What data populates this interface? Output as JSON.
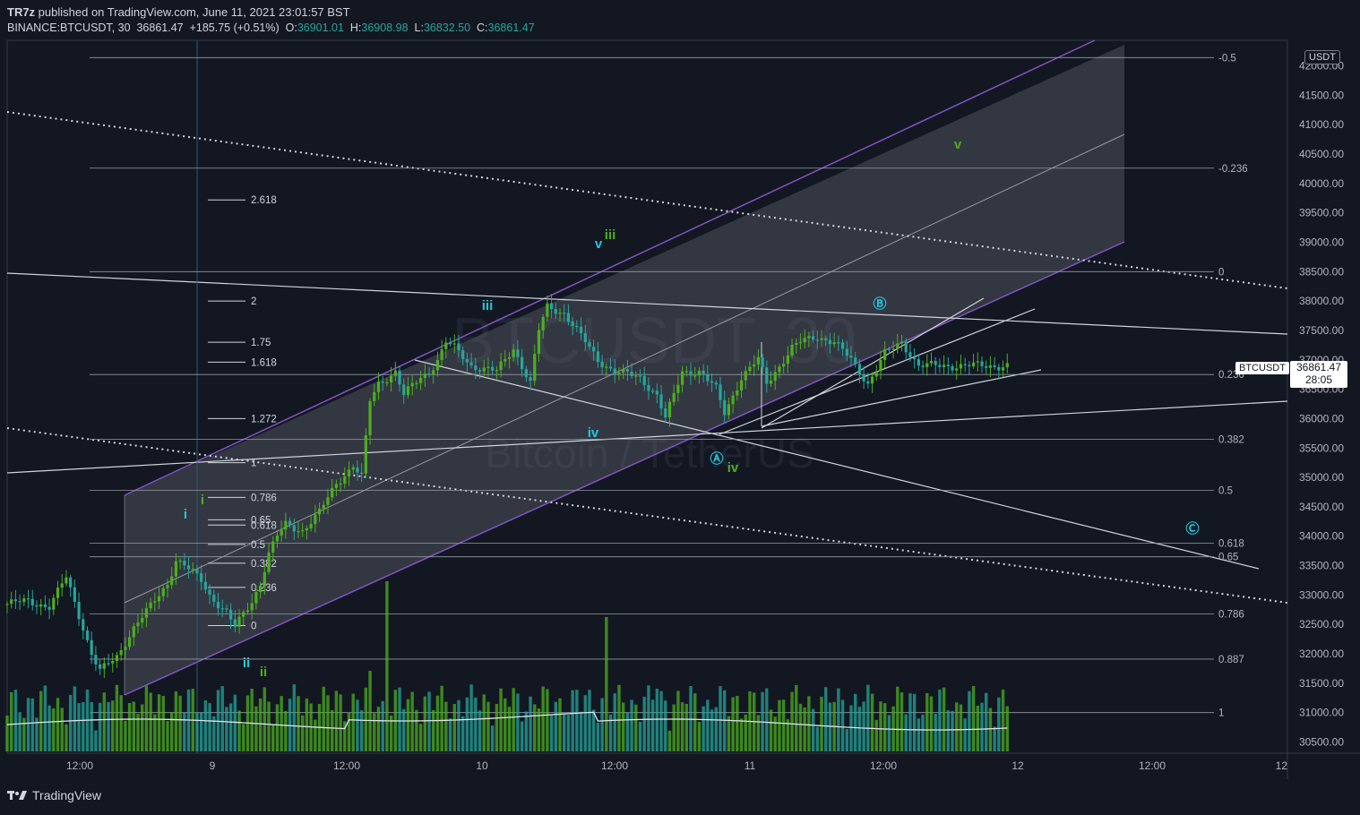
{
  "header": {
    "publisher": "TR7z",
    "published_text": " published on TradingView.com, June 11, 2021 23:01:57 BST",
    "symbol": "BINANCE:BTCUSDT, 30",
    "last": "36861.47",
    "change": "+185.75 (+0.51%)",
    "o_label": "O:",
    "o": "36901.01",
    "h_label": "H:",
    "h": "36908.98",
    "l_label": "L:",
    "l": "36832.50",
    "c_label": "C:",
    "c": "36861.47"
  },
  "watermark": {
    "main": "BTCUSDT, 30",
    "sub": "Bitcoin / TetherUS"
  },
  "price_axis": {
    "currency": "USDT"
  },
  "price_marker": {
    "ticker": "BTCUSDT",
    "price": "36861.47",
    "countdown": "28:05"
  },
  "footer": {
    "brand": "TradingView"
  },
  "colors": {
    "up": "#4caf1f",
    "down": "#26a69a",
    "channel": "#7e57c2",
    "cyan": "#26c6da",
    "green": "#4caf1f",
    "bg": "#131722"
  },
  "chart_data": {
    "type": "candlestick",
    "ylim": [
      30300,
      42500
    ],
    "y_ticks": [
      30500,
      31000,
      31500,
      32000,
      32500,
      33000,
      33500,
      34000,
      34500,
      35000,
      35500,
      36000,
      36500,
      37000,
      37500,
      38000,
      38500,
      39000,
      39500,
      40000,
      40500,
      41000,
      41500,
      42000
    ],
    "y_tick_labels": [
      "30500.00",
      "31000.00",
      "31500.00",
      "32000.00",
      "32500.00",
      "33000.00",
      "33500.00",
      "34000.00",
      "34500.00",
      "35000.00",
      "35500.00",
      "36000.00",
      "36500.00",
      "37000.00",
      "37500.00",
      "38000.00",
      "38500.00",
      "39000.00",
      "39500.00",
      "40000.00",
      "40500.00",
      "41000.00",
      "41500.00",
      "42000.00"
    ],
    "x_ticks": [
      "12:00",
      "9",
      "12:00",
      "10",
      "12:00",
      "11",
      "12:00",
      "12",
      "12:00",
      "12"
    ],
    "close_path": [
      [
        0,
        32850
      ],
      [
        5,
        32900
      ],
      [
        10,
        32800
      ],
      [
        14,
        33300
      ],
      [
        18,
        32450
      ],
      [
        20,
        32000
      ],
      [
        22,
        31700
      ],
      [
        26,
        31950
      ],
      [
        30,
        32450
      ],
      [
        34,
        32800
      ],
      [
        38,
        33200
      ],
      [
        40,
        33600
      ],
      [
        42,
        33500
      ],
      [
        46,
        33250
      ],
      [
        48,
        33000
      ],
      [
        52,
        32700
      ],
      [
        54,
        32450
      ],
      [
        58,
        32900
      ],
      [
        60,
        33200
      ],
      [
        62,
        33700
      ],
      [
        64,
        34000
      ],
      [
        66,
        34200
      ],
      [
        70,
        34100
      ],
      [
        74,
        34400
      ],
      [
        78,
        34900
      ],
      [
        82,
        35200
      ],
      [
        84,
        35000
      ],
      [
        86,
        36300
      ],
      [
        88,
        36600
      ],
      [
        92,
        36800
      ],
      [
        94,
        36400
      ],
      [
        98,
        36700
      ],
      [
        100,
        36800
      ],
      [
        102,
        37000
      ],
      [
        104,
        37300
      ],
      [
        106,
        37200
      ],
      [
        110,
        36900
      ],
      [
        116,
        36800
      ],
      [
        120,
        37200
      ],
      [
        124,
        36600
      ],
      [
        126,
        37500
      ],
      [
        128,
        37900
      ],
      [
        132,
        37800
      ],
      [
        136,
        37400
      ],
      [
        140,
        37000
      ],
      [
        144,
        36800
      ],
      [
        150,
        36700
      ],
      [
        154,
        36400
      ],
      [
        156,
        36000
      ],
      [
        160,
        36800
      ],
      [
        164,
        36800
      ],
      [
        168,
        36500
      ],
      [
        170,
        36100
      ],
      [
        174,
        36700
      ],
      [
        178,
        37000
      ],
      [
        180,
        36600
      ],
      [
        182,
        36800
      ],
      [
        186,
        37200
      ],
      [
        188,
        37300
      ],
      [
        192,
        37400
      ],
      [
        196,
        37300
      ],
      [
        200,
        37000
      ],
      [
        204,
        36600
      ],
      [
        208,
        37100
      ],
      [
        212,
        37300
      ],
      [
        216,
        36900
      ]
    ],
    "fib_retracement_right": [
      {
        "level": "-0.5",
        "price": 42140
      },
      {
        "level": "-0.236",
        "price": 40260
      },
      {
        "level": "0",
        "price": 38500
      },
      {
        "level": "0.236",
        "price": 36750
      },
      {
        "level": "0.382",
        "price": 35650
      },
      {
        "level": "0.5",
        "price": 34780
      },
      {
        "level": "0.618",
        "price": 33880
      },
      {
        "level": "0.65",
        "price": 33650
      },
      {
        "level": "0.786",
        "price": 32680
      },
      {
        "level": "0.887",
        "price": 31910
      },
      {
        "level": "1",
        "price": 31000
      }
    ],
    "fib_extension_left": [
      {
        "level": "2.618",
        "price": 39720
      },
      {
        "level": "2",
        "price": 38000
      },
      {
        "level": "1.75",
        "price": 37300
      },
      {
        "level": "1.618",
        "price": 36960
      },
      {
        "level": "1.272",
        "price": 36000
      },
      {
        "level": "1",
        "price": 35250
      },
      {
        "level": "0.786",
        "price": 34660
      },
      {
        "level": "0.65",
        "price": 34280
      },
      {
        "level": "0.618",
        "price": 34190
      },
      {
        "level": "0.5",
        "price": 33860
      },
      {
        "level": "0.382",
        "price": 33540
      },
      {
        "level": "0.236",
        "price": 33130
      },
      {
        "level": "0",
        "price": 32480
      }
    ],
    "wave_labels": [
      {
        "text": "i",
        "color": "cyan"
      },
      {
        "text": "i",
        "color": "green"
      },
      {
        "text": "ii",
        "color": "cyan"
      },
      {
        "text": "ii",
        "color": "green"
      },
      {
        "text": "iii",
        "color": "cyan"
      },
      {
        "text": "v",
        "color": "cyan"
      },
      {
        "text": "iii",
        "color": "green"
      },
      {
        "text": "iv",
        "color": "cyan"
      },
      {
        "text": "Ⓐ",
        "color": "cyan"
      },
      {
        "text": "iv",
        "color": "green"
      },
      {
        "text": "Ⓑ",
        "color": "cyan"
      },
      {
        "text": "v",
        "color": "green"
      },
      {
        "text": "Ⓒ",
        "color": "cyan"
      }
    ]
  }
}
